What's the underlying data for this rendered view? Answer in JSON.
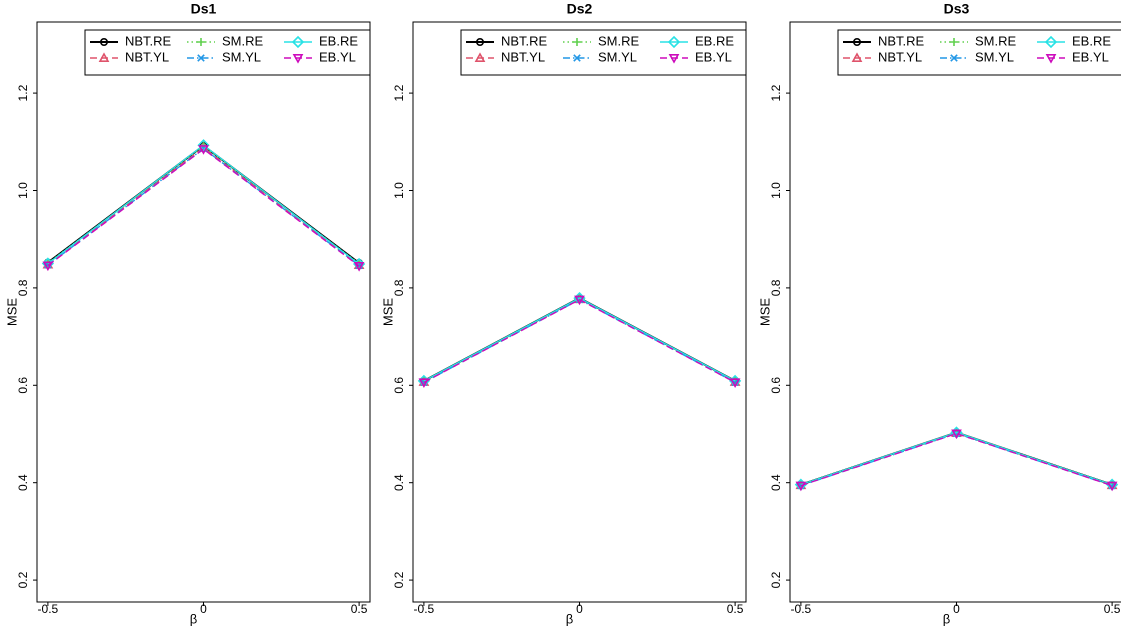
{
  "chart_data": [
    {
      "type": "line",
      "title": "Ds1",
      "x_label": "β",
      "y_label": "MSE",
      "x": [
        -0.5,
        0,
        0.5
      ],
      "xlim": [
        -0.535,
        0.535
      ],
      "xticks": [
        -0.5,
        0,
        0.5
      ],
      "ylim": [
        0.155,
        1.346
      ],
      "yticks": [
        0.2,
        0.4,
        0.6,
        0.8,
        {
          "value": 1,
          "label": "1.0"
        },
        1.2
      ],
      "legend": "top-right",
      "series": [
        {
          "name": "NBT.RE",
          "color": "#000000",
          "values": [
            0.852,
            1.092,
            0.851
          ]
        },
        {
          "name": "NBT.YL",
          "color": "#DF536B",
          "values": [
            0.848,
            1.088,
            0.847
          ]
        },
        {
          "name": "SM.RE",
          "color": "#61D04F",
          "values": [
            0.851,
            1.091,
            0.85
          ]
        },
        {
          "name": "SM.YL",
          "color": "#2297E6",
          "values": [
            0.847,
            1.086,
            0.846
          ]
        },
        {
          "name": "EB.RE",
          "color": "#28E2E5",
          "values": [
            0.85,
            1.093,
            0.849
          ]
        },
        {
          "name": "EB.YL",
          "color": "#CD0BBC",
          "values": [
            0.846,
            1.085,
            0.845
          ]
        }
      ]
    },
    {
      "type": "line",
      "title": "Ds2",
      "x_label": "β",
      "y_label": "MSE",
      "x": [
        -0.5,
        0,
        0.5
      ],
      "xlim": [
        -0.535,
        0.535
      ],
      "xticks": [
        -0.5,
        0,
        0.5
      ],
      "ylim": [
        0.155,
        1.346
      ],
      "yticks": [
        0.2,
        0.4,
        0.6,
        0.8,
        {
          "value": 1,
          "label": "1.0"
        },
        1.2
      ],
      "legend": "top-right",
      "series": [
        {
          "name": "NBT.RE",
          "color": "#000000",
          "values": [
            0.609,
            0.779,
            0.609
          ]
        },
        {
          "name": "NBT.YL",
          "color": "#DF536B",
          "values": [
            0.607,
            0.777,
            0.607
          ]
        },
        {
          "name": "SM.RE",
          "color": "#61D04F",
          "values": [
            0.608,
            0.778,
            0.608
          ]
        },
        {
          "name": "SM.YL",
          "color": "#2297E6",
          "values": [
            0.606,
            0.776,
            0.606
          ]
        },
        {
          "name": "EB.RE",
          "color": "#28E2E5",
          "values": [
            0.609,
            0.779,
            0.609
          ]
        },
        {
          "name": "EB.YL",
          "color": "#CD0BBC",
          "values": [
            0.606,
            0.776,
            0.606
          ]
        }
      ]
    },
    {
      "type": "line",
      "title": "Ds3",
      "x_label": "β",
      "y_label": "MSE",
      "x": [
        -0.5,
        0,
        0.5
      ],
      "xlim": [
        -0.535,
        0.535
      ],
      "xticks": [
        -0.5,
        0,
        0.5
      ],
      "ylim": [
        0.155,
        1.346
      ],
      "yticks": [
        0.2,
        0.4,
        0.6,
        0.8,
        {
          "value": 1,
          "label": "1.0"
        },
        1.2
      ],
      "legend": "top-right",
      "series": [
        {
          "name": "NBT.RE",
          "color": "#000000",
          "values": [
            0.396,
            0.503,
            0.396
          ]
        },
        {
          "name": "NBT.YL",
          "color": "#DF536B",
          "values": [
            0.395,
            0.502,
            0.395
          ]
        },
        {
          "name": "SM.RE",
          "color": "#61D04F",
          "values": [
            0.396,
            0.503,
            0.396
          ]
        },
        {
          "name": "SM.YL",
          "color": "#2297E6",
          "values": [
            0.394,
            0.501,
            0.394
          ]
        },
        {
          "name": "EB.RE",
          "color": "#28E2E5",
          "values": [
            0.396,
            0.503,
            0.396
          ]
        },
        {
          "name": "EB.YL",
          "color": "#CD0BBC",
          "values": [
            0.394,
            0.501,
            0.394
          ]
        }
      ]
    }
  ]
}
